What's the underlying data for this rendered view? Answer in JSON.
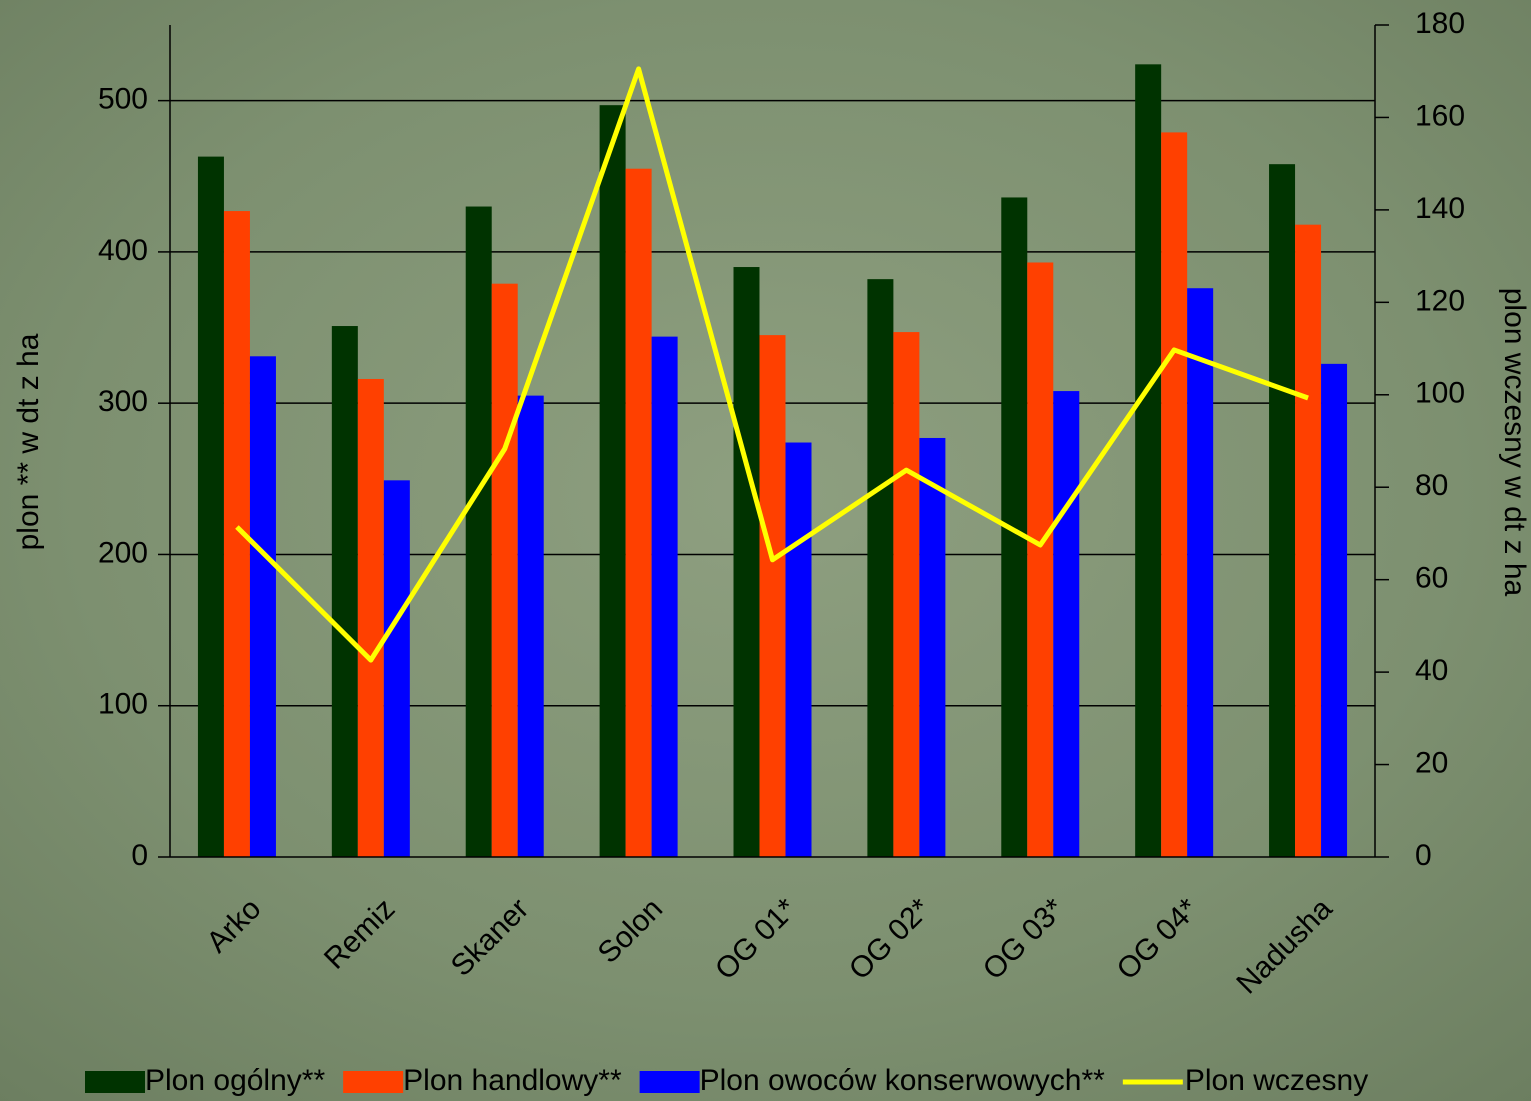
{
  "chart_data": {
    "type": "bar",
    "categories": [
      "Arko",
      "Remiz",
      "Skaner",
      "Solon",
      "OG 01*",
      "OG 02*",
      "OG 03*",
      "OG 04*",
      "Nadusha"
    ],
    "series": [
      {
        "name": "Plon ogólny**",
        "color": "#003300",
        "values": [
          463,
          351,
          430,
          497,
          390,
          382,
          436,
          524,
          458
        ]
      },
      {
        "name": "Plon handlowy**",
        "color": "#ff4000",
        "values": [
          427,
          316,
          379,
          455,
          345,
          347,
          393,
          479,
          418
        ]
      },
      {
        "name": "Plon owoców konserwowych**",
        "color": "#0000ff",
        "values": [
          331,
          249,
          305,
          344,
          274,
          277,
          308,
          376,
          326
        ]
      },
      {
        "name": "Plon wczesny",
        "color": "#ffff00",
        "type": "line",
        "axis": "y2",
        "values": [
          71.4,
          42.6,
          88.3,
          170.5,
          64.3,
          83.7,
          67.5,
          109.7,
          99.3
        ]
      }
    ],
    "y_label": "plon ** w dt z ha",
    "y2_label": "plon wczesny w dt z ha",
    "ylim": [
      0,
      550
    ],
    "yticks": [
      0,
      100,
      200,
      300,
      400,
      500
    ],
    "y2lim": [
      0,
      180
    ],
    "y2ticks": [
      0,
      20,
      40,
      60,
      80,
      100,
      120,
      140,
      160,
      180
    ],
    "grid": true,
    "legend": "bottom"
  }
}
